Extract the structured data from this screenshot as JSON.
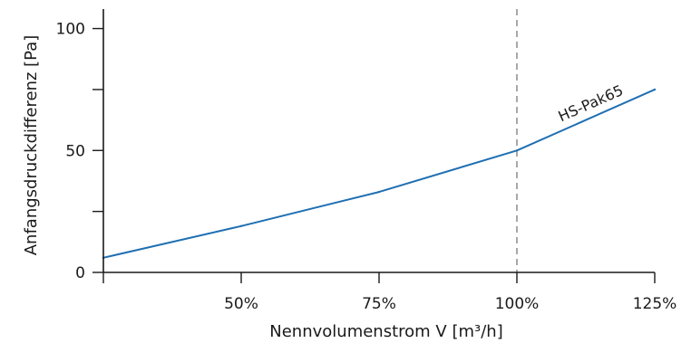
{
  "chart_data": {
    "type": "line",
    "xlabel": "Nennvolumenstrom V [m³/h]",
    "ylabel": "Anfangsdruckdifferenz [Pa]",
    "xlim": [
      25,
      125
    ],
    "ylim": [
      0,
      108
    ],
    "x_ticks": [
      {
        "value": 25,
        "label": ""
      },
      {
        "value": 50,
        "label": "50%"
      },
      {
        "value": 75,
        "label": "75%"
      },
      {
        "value": 100,
        "label": "100%"
      },
      {
        "value": 125,
        "label": "125%"
      }
    ],
    "y_ticks": [
      {
        "value": 0,
        "label": "0"
      },
      {
        "value": 25,
        "label": ""
      },
      {
        "value": 50,
        "label": "50"
      },
      {
        "value": 75,
        "label": ""
      },
      {
        "value": 100,
        "label": "100"
      }
    ],
    "reference_line": {
      "x": 100,
      "style": "dashed",
      "color": "#7a7a7a"
    },
    "grid": false,
    "series": [
      {
        "name": "HS-Pak65",
        "color": "#1f6fb2",
        "x": [
          25,
          50,
          75,
          100,
          125
        ],
        "y": [
          6,
          19,
          33,
          50,
          75
        ]
      }
    ]
  }
}
